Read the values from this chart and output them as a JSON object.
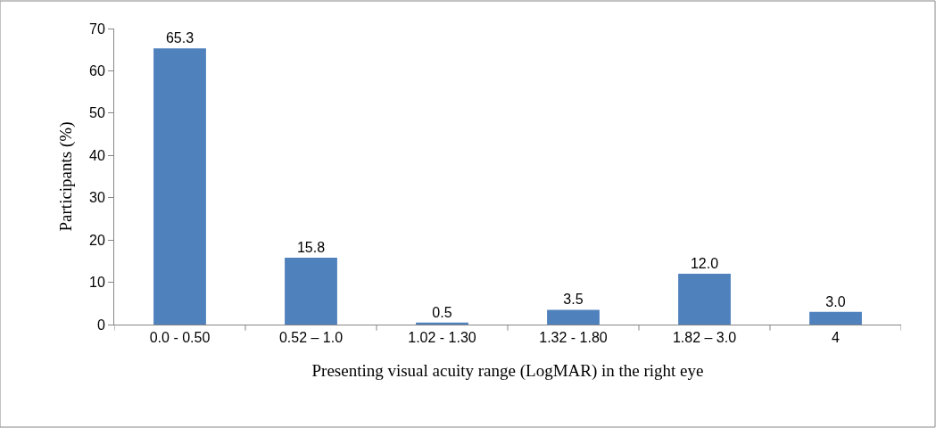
{
  "chart_data": {
    "type": "bar",
    "xlabel": "Presenting visual acuity range (LogMAR) in the right eye",
    "ylabel": "Participants (%)",
    "categories": [
      "0.0 - 0.50",
      "0.52 – 1.0",
      "1.02 - 1.30",
      "1.32 - 1.80",
      "1.82 – 3.0",
      "4"
    ],
    "values": [
      65.3,
      15.8,
      0.5,
      3.5,
      12.0,
      3.0
    ],
    "value_labels": [
      "65.3",
      "15.8",
      "0.5",
      "3.5",
      "12.0",
      "3.0"
    ],
    "color": "#4f81bd",
    "ylim": [
      0,
      70
    ],
    "yticks": [
      0,
      10,
      20,
      30,
      40,
      50,
      60,
      70
    ]
  }
}
